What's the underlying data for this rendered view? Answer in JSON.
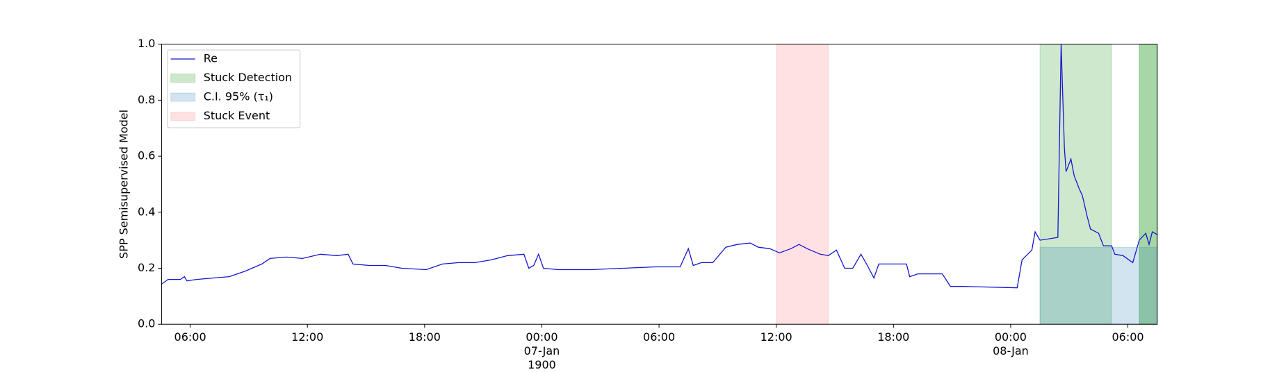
{
  "chart_data": {
    "type": "line",
    "y_label": "SPP Semisupervised Model",
    "x": [
      "06-Jan 04:32",
      "06-Jan 04:52",
      "06-Jan 05:30",
      "06-Jan 05:42",
      "06-Jan 05:50",
      "06-Jan 06:20",
      "06-Jan 07:10",
      "06-Jan 08:00",
      "06-Jan 08:50",
      "06-Jan 09:40",
      "06-Jan 10:05",
      "06-Jan 10:55",
      "06-Jan 11:45",
      "06-Jan 12:40",
      "06-Jan 13:30",
      "06-Jan 14:05",
      "06-Jan 14:20",
      "06-Jan 15:10",
      "06-Jan 16:00",
      "06-Jan 16:50",
      "06-Jan 18:05",
      "06-Jan 18:55",
      "06-Jan 19:45",
      "06-Jan 20:35",
      "06-Jan 21:25",
      "06-Jan 22:15",
      "06-Jan 23:05",
      "06-Jan 23:20",
      "06-Jan 23:35",
      "06-Jan 23:50",
      "07-Jan 00:05",
      "07-Jan 00:50",
      "07-Jan 02:30",
      "07-Jan 04:10",
      "07-Jan 05:50",
      "07-Jan 07:05",
      "07-Jan 07:30",
      "07-Jan 07:45",
      "07-Jan 08:10",
      "07-Jan 08:45",
      "07-Jan 09:25",
      "07-Jan 10:00",
      "07-Jan 10:40",
      "07-Jan 11:05",
      "07-Jan 11:40",
      "07-Jan 12:10",
      "07-Jan 12:45",
      "07-Jan 13:10",
      "07-Jan 13:35",
      "07-Jan 14:15",
      "07-Jan 14:40",
      "07-Jan 15:05",
      "07-Jan 15:30",
      "07-Jan 15:55",
      "07-Jan 16:20",
      "07-Jan 16:40",
      "07-Jan 17:00",
      "07-Jan 17:15",
      "07-Jan 18:40",
      "07-Jan 18:50",
      "07-Jan 19:15",
      "07-Jan 20:30",
      "07-Jan 20:55",
      "07-Jan 21:35",
      "08-Jan 00:20",
      "08-Jan 00:35",
      "08-Jan 01:05",
      "08-Jan 01:15",
      "08-Jan 01:30",
      "08-Jan 02:25",
      "08-Jan 02:35",
      "08-Jan 02:45",
      "08-Jan 02:50",
      "08-Jan 03:05",
      "08-Jan 03:15",
      "08-Jan 03:30",
      "08-Jan 03:40",
      "08-Jan 03:55",
      "08-Jan 04:05",
      "08-Jan 04:30",
      "08-Jan 04:45",
      "08-Jan 05:10",
      "08-Jan 05:20",
      "08-Jan 05:45",
      "08-Jan 06:15",
      "08-Jan 06:35",
      "08-Jan 06:55",
      "08-Jan 07:05",
      "08-Jan 07:15",
      "08-Jan 07:30"
    ],
    "series": [
      {
        "name": "Re",
        "color": "#1515d0",
        "values": [
          0.143,
          0.16,
          0.16,
          0.17,
          0.155,
          0.16,
          0.165,
          0.17,
          0.19,
          0.215,
          0.235,
          0.24,
          0.235,
          0.25,
          0.245,
          0.25,
          0.215,
          0.21,
          0.21,
          0.2,
          0.195,
          0.215,
          0.22,
          0.22,
          0.23,
          0.245,
          0.25,
          0.2,
          0.21,
          0.25,
          0.2,
          0.195,
          0.195,
          0.2,
          0.205,
          0.205,
          0.27,
          0.21,
          0.22,
          0.22,
          0.275,
          0.285,
          0.29,
          0.275,
          0.27,
          0.255,
          0.27,
          0.285,
          0.27,
          0.25,
          0.245,
          0.265,
          0.2,
          0.2,
          0.25,
          0.21,
          0.165,
          0.215,
          0.215,
          0.17,
          0.18,
          0.18,
          0.135,
          0.135,
          0.13,
          0.23,
          0.265,
          0.33,
          0.3,
          0.31,
          1.0,
          0.63,
          0.545,
          0.59,
          0.53,
          0.485,
          0.46,
          0.385,
          0.34,
          0.325,
          0.28,
          0.28,
          0.25,
          0.245,
          0.22,
          0.3,
          0.325,
          0.285,
          0.33,
          0.32
        ]
      }
    ],
    "spans": [
      {
        "name": "Stuck Detection",
        "color": "#2ca02c",
        "alpha": 0.24,
        "ranges": [
          {
            "start": "08-Jan 01:30",
            "end": "08-Jan 05:10"
          },
          {
            "start": "08-Jan 06:35",
            "end": "08-Jan 07:30"
          },
          {
            "start": "08-Jan 06:35",
            "end": "08-Jan 07:30"
          }
        ]
      },
      {
        "name": "C.I. 95% (τ₁)",
        "color": "#1f77b4",
        "alpha": 0.2,
        "ranges": [
          {
            "start": "08-Jan 01:30",
            "end": "08-Jan 07:30",
            "top": 0.275
          }
        ]
      },
      {
        "name": "Stuck Event",
        "color": "#ff9aa2",
        "alpha": 0.3,
        "ranges": [
          {
            "start": "07-Jan 12:00",
            "end": "07-Jan 14:40"
          }
        ]
      }
    ],
    "xlim": [
      "06-Jan 04:32",
      "08-Jan 07:30"
    ],
    "xticks": [
      {
        "value": "06-Jan 06:00",
        "label": "06:00"
      },
      {
        "value": "06-Jan 12:00",
        "label": "12:00"
      },
      {
        "value": "06-Jan 18:00",
        "label": "18:00"
      },
      {
        "value": "07-Jan 00:00",
        "label": "00:00\n07-Jan\n1900"
      },
      {
        "value": "07-Jan 06:00",
        "label": "06:00"
      },
      {
        "value": "07-Jan 12:00",
        "label": "12:00"
      },
      {
        "value": "07-Jan 18:00",
        "label": "18:00"
      },
      {
        "value": "08-Jan 00:00",
        "label": "00:00\n08-Jan"
      },
      {
        "value": "08-Jan 06:00",
        "label": "06:00"
      }
    ],
    "ylim": [
      0,
      1
    ],
    "yticks": [
      {
        "value": 0,
        "label": "0.0"
      },
      {
        "value": 0.2,
        "label": "0.2"
      },
      {
        "value": 0.4,
        "label": "0.4"
      },
      {
        "value": 0.6,
        "label": "0.6"
      },
      {
        "value": 0.8,
        "label": "0.8"
      },
      {
        "value": 1,
        "label": "1.0"
      }
    ],
    "legend": "upper left",
    "grid": false
  }
}
